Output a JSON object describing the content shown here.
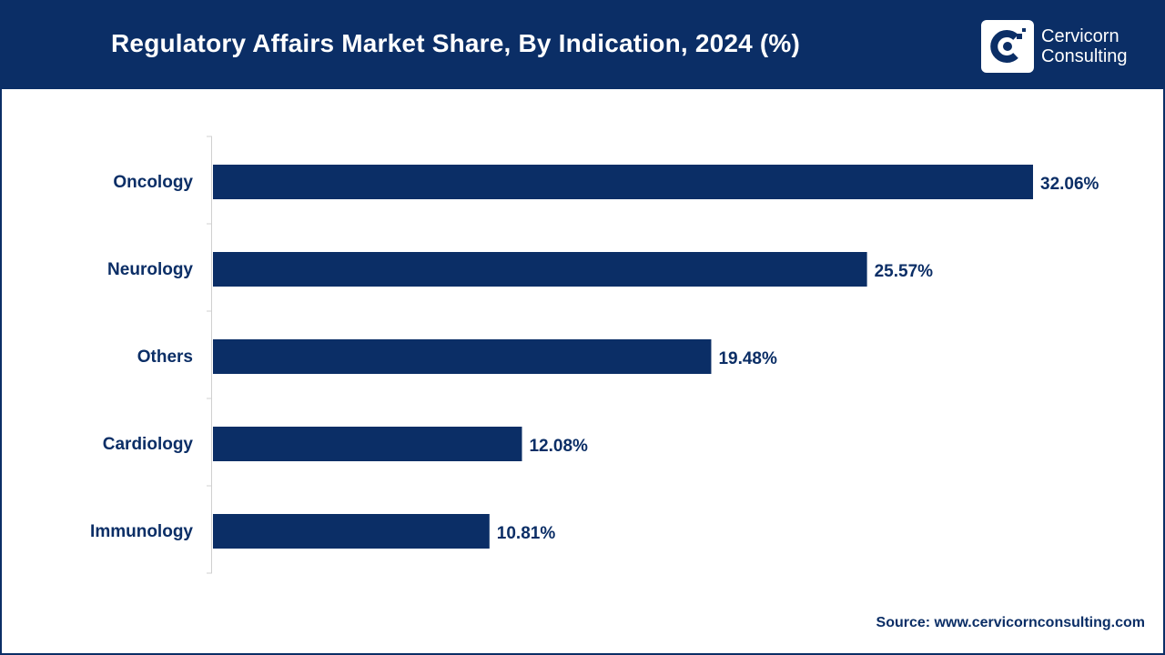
{
  "header": {
    "title": "Regulatory Affairs Market Share, By Indication, 2024 (%)",
    "brand_line1": "Cervicorn",
    "brand_line2": "Consulting"
  },
  "source": "Source: www.cervicornconsulting.com",
  "colors": {
    "brand": "#0b2e66",
    "bar": "#0b2e66",
    "background": "#ffffff",
    "axis": "#d0d0d0"
  },
  "chart_data": {
    "type": "bar",
    "orientation": "horizontal",
    "title": "Regulatory Affairs Market Share, By Indication, 2024 (%)",
    "categories": [
      "Oncology",
      "Neurology",
      "Others",
      "Cardiology",
      "Immunology"
    ],
    "values": [
      32.06,
      25.57,
      19.48,
      12.08,
      10.81
    ],
    "value_labels": [
      "32.06%",
      "25.57%",
      "19.48%",
      "12.08%",
      "10.81%"
    ],
    "xlabel": "",
    "ylabel": "",
    "xlim": [
      0,
      32.06
    ],
    "grid": false,
    "legend": "none"
  }
}
